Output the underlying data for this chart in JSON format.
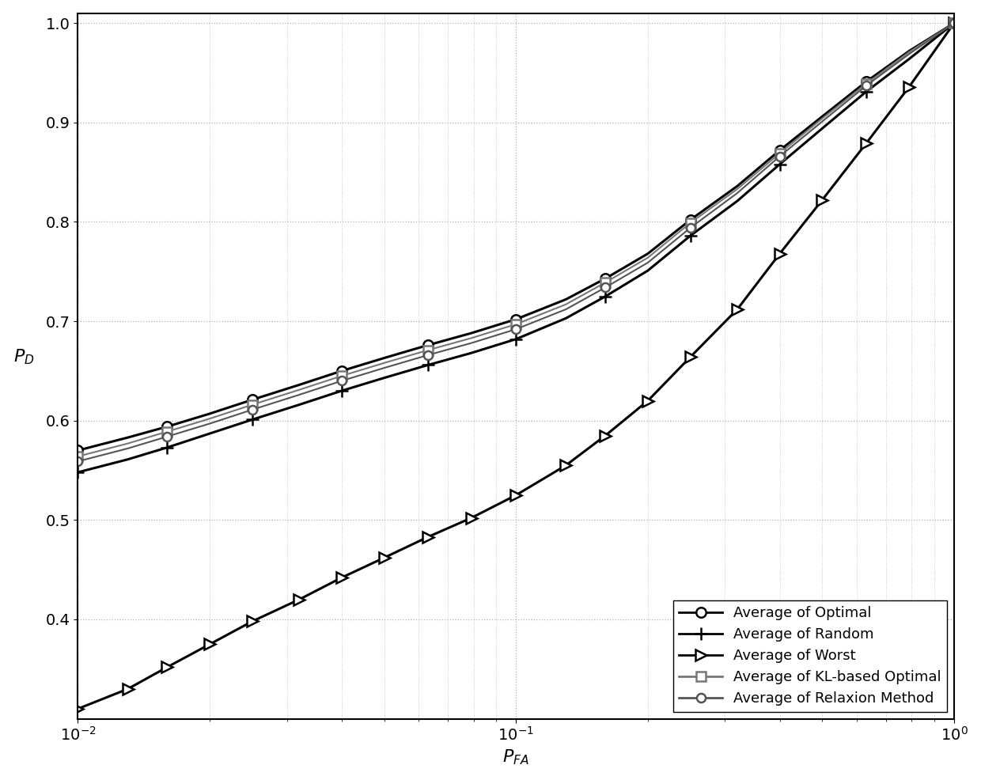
{
  "xlabel": "P_{FA}",
  "ylabel": "P_{D}",
  "xlim": [
    0.01,
    1.0
  ],
  "ylim": [
    0.3,
    1.01
  ],
  "background_color": "#ffffff",
  "grid_color": "#aaaaaa",
  "grid_linestyle": ":",
  "tick_fontsize": 14,
  "label_fontsize": 16,
  "legend_fontsize": 13,
  "yticks": [
    0.4,
    0.5,
    0.6,
    0.7,
    0.8,
    0.9,
    1.0
  ],
  "x_values": [
    0.01,
    0.013,
    0.016,
    0.02,
    0.025,
    0.032,
    0.04,
    0.05,
    0.063,
    0.079,
    0.1,
    0.13,
    0.16,
    0.2,
    0.25,
    0.32,
    0.4,
    0.5,
    0.63,
    0.79,
    1.0
  ],
  "series": [
    {
      "label": "Average of Optimal",
      "marker": "o",
      "color": "#000000",
      "linewidth": 2.2,
      "markersize": 9,
      "markerfacecolor": "white",
      "linestyle": "-",
      "markevery": 2,
      "y_values": [
        0.57,
        0.583,
        0.594,
        0.607,
        0.621,
        0.636,
        0.65,
        0.663,
        0.676,
        0.688,
        0.702,
        0.722,
        0.743,
        0.768,
        0.802,
        0.836,
        0.872,
        0.906,
        0.941,
        0.972,
        1.0
      ]
    },
    {
      "label": "Average of Random",
      "marker": "+",
      "color": "#000000",
      "linewidth": 2.2,
      "markersize": 12,
      "markerfacecolor": "#000000",
      "linestyle": "-",
      "markevery": 2,
      "y_values": [
        0.548,
        0.561,
        0.573,
        0.587,
        0.601,
        0.616,
        0.63,
        0.643,
        0.656,
        0.668,
        0.682,
        0.703,
        0.725,
        0.751,
        0.786,
        0.821,
        0.858,
        0.894,
        0.931,
        0.964,
        1.0
      ]
    },
    {
      "label": "Average of Worst",
      "marker": ">",
      "color": "#000000",
      "linewidth": 2.2,
      "markersize": 10,
      "markerfacecolor": "white",
      "linestyle": "-",
      "markevery": 1,
      "y_values": [
        0.31,
        0.33,
        0.352,
        0.375,
        0.398,
        0.42,
        0.442,
        0.462,
        0.483,
        0.502,
        0.525,
        0.555,
        0.585,
        0.62,
        0.664,
        0.712,
        0.768,
        0.822,
        0.879,
        0.936,
        1.0
      ]
    },
    {
      "label": "Average of KL-based Optimal",
      "marker": "s",
      "color": "#777777",
      "linewidth": 1.5,
      "markersize": 8,
      "markerfacecolor": "white",
      "linestyle": "-",
      "markevery": 2,
      "y_values": [
        0.564,
        0.577,
        0.589,
        0.602,
        0.616,
        0.631,
        0.645,
        0.658,
        0.671,
        0.683,
        0.697,
        0.717,
        0.739,
        0.764,
        0.799,
        0.833,
        0.869,
        0.904,
        0.939,
        0.971,
        1.0
      ]
    },
    {
      "label": "Average of Relaxion Method",
      "marker": "o",
      "color": "#555555",
      "linewidth": 1.5,
      "markersize": 8,
      "markerfacecolor": "white",
      "linestyle": "-",
      "markevery": 2,
      "y_values": [
        0.559,
        0.572,
        0.584,
        0.597,
        0.611,
        0.626,
        0.64,
        0.653,
        0.666,
        0.678,
        0.692,
        0.712,
        0.734,
        0.759,
        0.794,
        0.829,
        0.866,
        0.901,
        0.937,
        0.969,
        1.0
      ]
    }
  ]
}
